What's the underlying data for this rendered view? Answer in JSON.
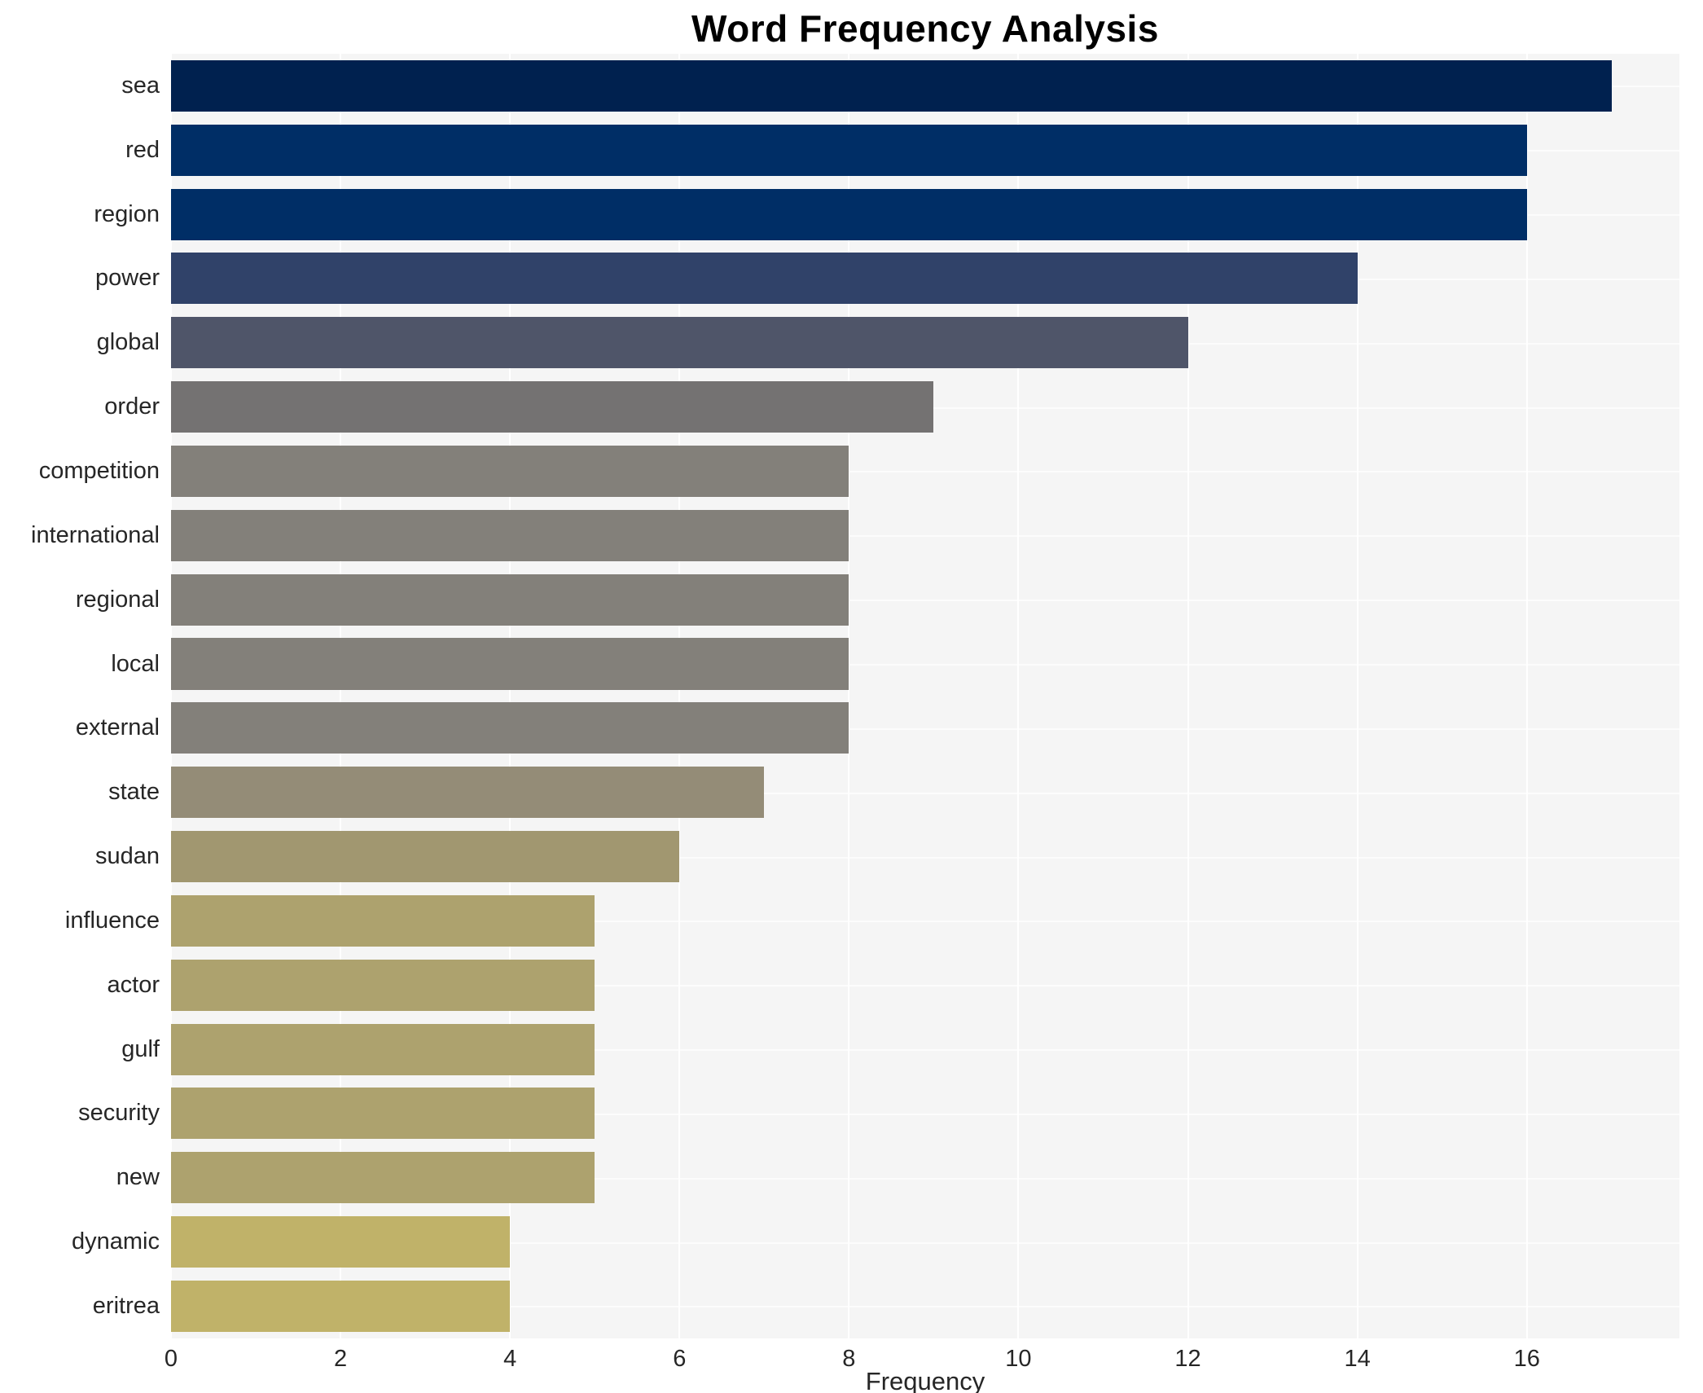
{
  "title": "Word Frequency Analysis",
  "xlabel": "Frequency",
  "colors": {
    "figure_background": "#ffffff",
    "plot_background": "#f5f5f5",
    "gridline": "#ffffff",
    "text": "#262626",
    "title_text": "#000000"
  },
  "chart_data": {
    "type": "bar",
    "orientation": "horizontal",
    "title": "Word Frequency Analysis",
    "xlabel": "Frequency",
    "ylabel": "",
    "categories": [
      "sea",
      "red",
      "region",
      "power",
      "global",
      "order",
      "competition",
      "international",
      "regional",
      "local",
      "external",
      "state",
      "sudan",
      "influence",
      "actor",
      "gulf",
      "security",
      "new",
      "dynamic",
      "eritrea"
    ],
    "values": [
      17,
      16,
      16,
      14,
      12,
      9,
      8,
      8,
      8,
      8,
      8,
      7,
      6,
      5,
      5,
      5,
      5,
      5,
      4,
      4
    ],
    "bar_colors": [
      "#00214f",
      "#002e66",
      "#002e66",
      "#304269",
      "#4f5569",
      "#747272",
      "#83807a",
      "#83807a",
      "#83807a",
      "#83807a",
      "#83807a",
      "#948c77",
      "#a19770",
      "#ada26e",
      "#ada26e",
      "#ada26e",
      "#ada26e",
      "#ada26e",
      "#c0b269",
      "#c0b269"
    ],
    "colormap": "cividis",
    "xlim": [
      0,
      17.8
    ],
    "xticks": [
      0,
      2,
      4,
      6,
      8,
      10,
      12,
      14,
      16
    ],
    "grid": true,
    "legend": false
  }
}
